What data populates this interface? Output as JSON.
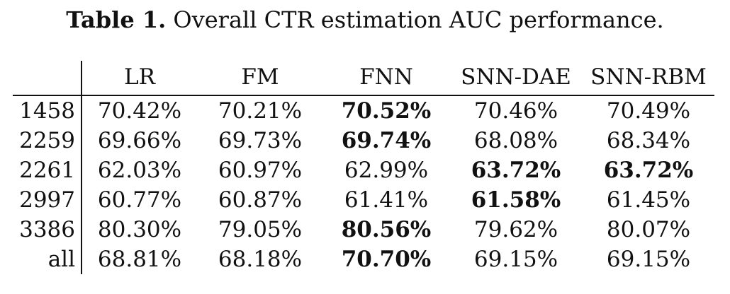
{
  "caption": {
    "label": "Table 1.",
    "text": " Overall CTR estimation AUC performance."
  },
  "table": {
    "corner": "",
    "columns": [
      "LR",
      "FM",
      "FNN",
      "SNN-DAE",
      "SNN-RBM"
    ],
    "rows": [
      {
        "label": "1458",
        "cells": [
          "70.42%",
          "70.21%",
          "70.52%",
          "70.46%",
          "70.49%"
        ],
        "bold": [
          false,
          false,
          true,
          false,
          false
        ]
      },
      {
        "label": "2259",
        "cells": [
          "69.66%",
          "69.73%",
          "69.74%",
          "68.08%",
          "68.34%"
        ],
        "bold": [
          false,
          false,
          true,
          false,
          false
        ]
      },
      {
        "label": "2261",
        "cells": [
          "62.03%",
          "60.97%",
          "62.99%",
          "63.72%",
          "63.72%"
        ],
        "bold": [
          false,
          false,
          false,
          true,
          true
        ]
      },
      {
        "label": "2997",
        "cells": [
          "60.77%",
          "60.87%",
          "61.41%",
          "61.58%",
          "61.45%"
        ],
        "bold": [
          false,
          false,
          false,
          true,
          false
        ]
      },
      {
        "label": "3386",
        "cells": [
          "80.30%",
          "79.05%",
          "80.56%",
          "79.62%",
          "80.07%"
        ],
        "bold": [
          false,
          false,
          true,
          false,
          false
        ]
      },
      {
        "label": "all",
        "cells": [
          "68.81%",
          "68.18%",
          "70.70%",
          "69.15%",
          "69.15%"
        ],
        "bold": [
          false,
          false,
          true,
          false,
          false
        ]
      }
    ]
  }
}
